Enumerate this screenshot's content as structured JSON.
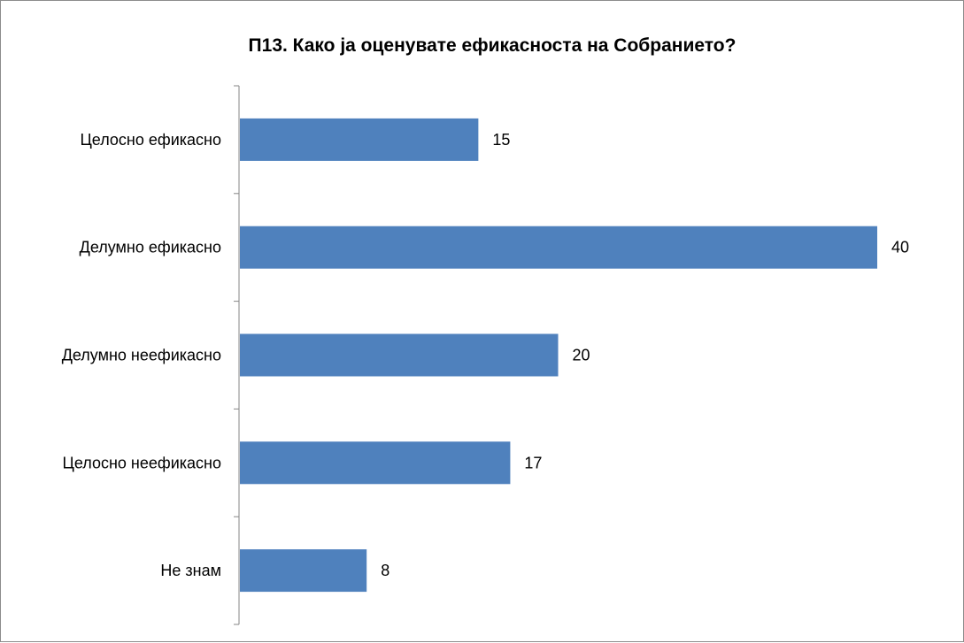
{
  "chart_data": {
    "type": "bar",
    "orientation": "horizontal",
    "title": "П13. Како ја оценувате ефикасноста на Собранието?",
    "categories": [
      "Целосно ефикасно",
      "Делумно ефикасно",
      "Делумно неефикасно",
      "Целосно неефикасно",
      "Не знам"
    ],
    "values": [
      15,
      40,
      20,
      17,
      8
    ],
    "xlim": [
      0,
      40
    ],
    "bar_color": "#4f81bd",
    "grid": false,
    "legend": "none"
  }
}
